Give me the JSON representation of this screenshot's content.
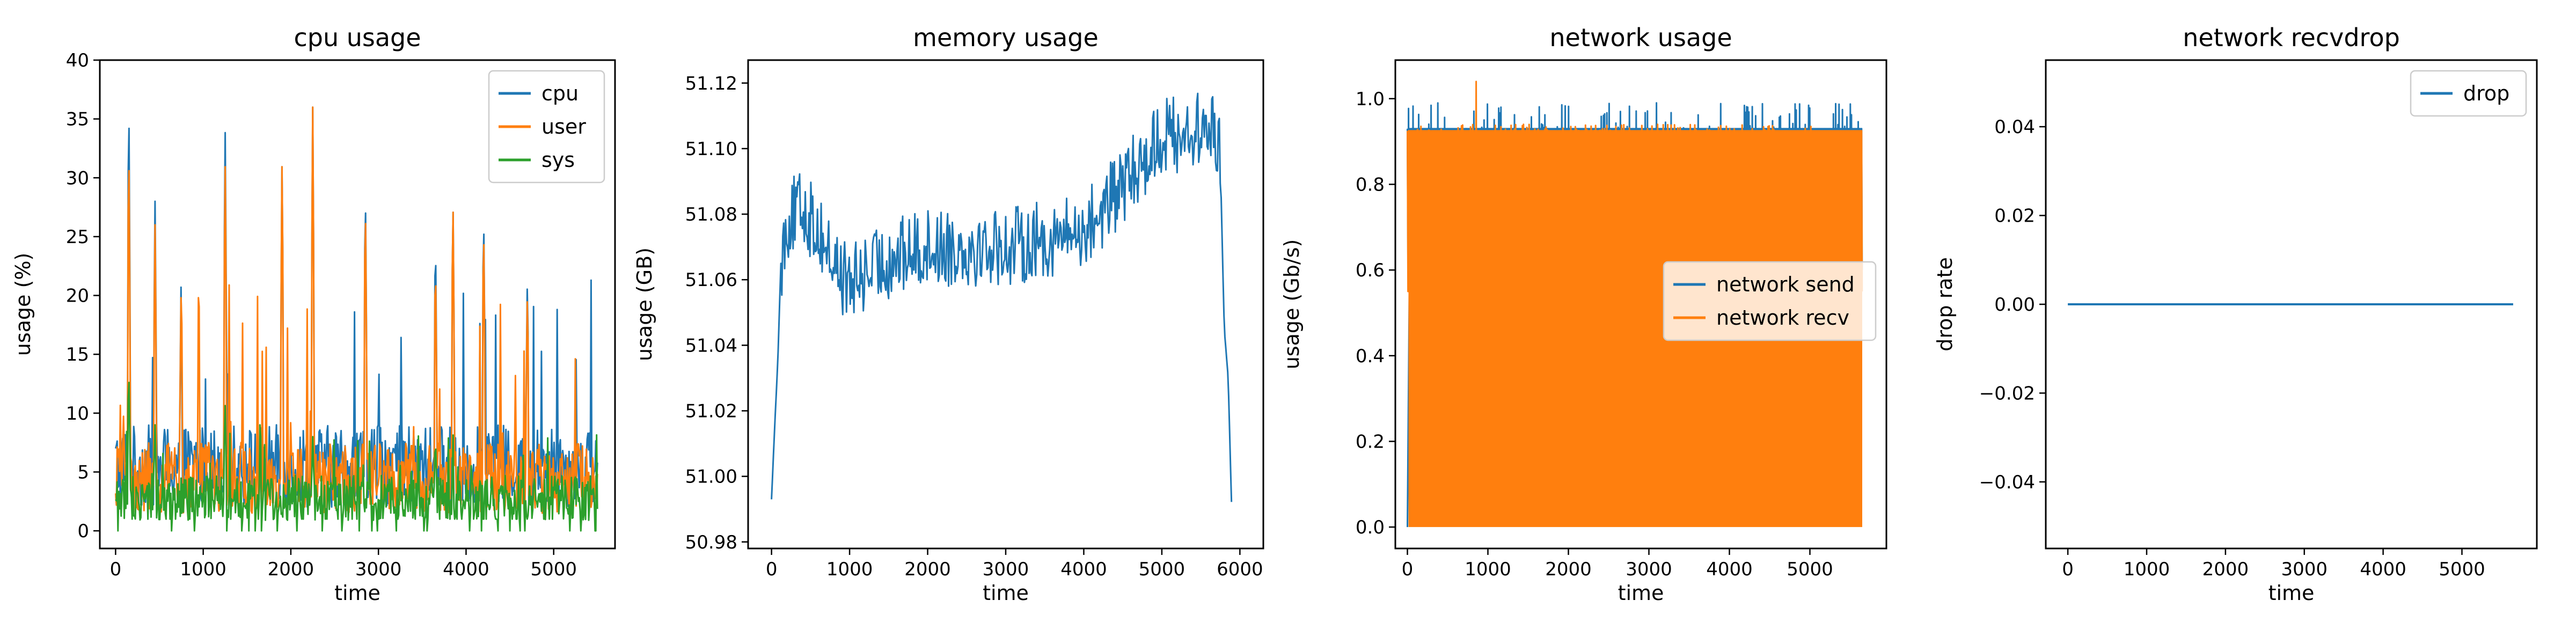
{
  "chart_data": [
    {
      "type": "line",
      "title": "cpu usage",
      "xlabel": "time",
      "ylabel": "usage (%)",
      "xlim": [
        -180,
        5700
      ],
      "ylim": [
        -1.5,
        40
      ],
      "xticks": [
        0,
        1000,
        2000,
        3000,
        4000,
        5000
      ],
      "yticks": [
        0,
        5,
        10,
        15,
        20,
        25,
        30,
        35,
        40
      ],
      "legend": "top-right",
      "x_extent": [
        0,
        5500
      ],
      "series": [
        {
          "name": "cpu",
          "color": "#1f77b4",
          "baseline": 5.5,
          "noise": 3.5,
          "peaks": [
            [
              150,
              38
            ],
            [
              450,
              28
            ],
            [
              750,
              23
            ],
            [
              1250,
              35
            ],
            [
              1900,
              32
            ],
            [
              2250,
              36
            ],
            [
              2850,
              30
            ],
            [
              3650,
              26
            ],
            [
              3850,
              29
            ],
            [
              4200,
              28
            ],
            [
              4700,
              22
            ],
            [
              5500,
              6
            ]
          ]
        },
        {
          "name": "user",
          "color": "#ff7f0e",
          "baseline": 4.5,
          "noise": 3.0,
          "peaks": [
            [
              150,
              34
            ],
            [
              450,
              26
            ],
            [
              750,
              22
            ],
            [
              1250,
              32
            ],
            [
              1900,
              32
            ],
            [
              2250,
              36
            ],
            [
              2850,
              29
            ],
            [
              3650,
              24
            ],
            [
              3850,
              29
            ],
            [
              4200,
              27
            ],
            [
              4700,
              21
            ],
            [
              5500,
              5
            ]
          ]
        },
        {
          "name": "sys",
          "color": "#2ca02c",
          "baseline": 2.5,
          "noise": 2.2,
          "peaks": [
            [
              150,
              14
            ],
            [
              450,
              9
            ],
            [
              1250,
              11
            ],
            [
              1650,
              10
            ],
            [
              2250,
              8
            ],
            [
              3650,
              8
            ]
          ]
        }
      ]
    },
    {
      "type": "line",
      "title": "memory usage",
      "xlabel": "time",
      "ylabel": "usage (GB)",
      "xlim": [
        -300,
        6300
      ],
      "ylim": [
        50.978,
        51.127
      ],
      "xticks": [
        0,
        1000,
        2000,
        3000,
        4000,
        5000,
        6000
      ],
      "yticks": [
        50.98,
        51.0,
        51.02,
        51.04,
        51.06,
        51.08,
        51.1,
        51.12
      ],
      "series": [
        {
          "name": "memory",
          "color": "#1f77b4",
          "points": [
            [
              0,
              50.993
            ],
            [
              40,
              51.015
            ],
            [
              80,
              51.035
            ],
            [
              120,
              51.065
            ],
            [
              200,
              51.078
            ],
            [
              400,
              51.082
            ],
            [
              600,
              51.075
            ],
            [
              800,
              51.065
            ],
            [
              1000,
              51.058
            ],
            [
              1200,
              51.062
            ],
            [
              1500,
              51.066
            ],
            [
              2000,
              51.07
            ],
            [
              2500,
              51.07
            ],
            [
              3000,
              51.07
            ],
            [
              3500,
              51.072
            ],
            [
              4000,
              51.075
            ],
            [
              4500,
              51.088
            ],
            [
              5000,
              51.104
            ],
            [
              5400,
              51.105
            ],
            [
              5700,
              51.105
            ],
            [
              5750,
              51.095
            ],
            [
              5800,
              51.045
            ],
            [
              5850,
              51.03
            ],
            [
              5900,
              50.985
            ]
          ],
          "wiggle": 0.012
        }
      ]
    },
    {
      "type": "line",
      "title": "network usage",
      "xlabel": "time",
      "ylabel": "usage (Gb/s)",
      "xlim": [
        -150,
        5950
      ],
      "ylim": [
        -0.05,
        1.09
      ],
      "xticks": [
        0,
        1000,
        2000,
        3000,
        4000,
        5000
      ],
      "yticks": [
        0.0,
        0.2,
        0.4,
        0.6,
        0.8,
        1.0
      ],
      "legend": "center-right",
      "x_extent": [
        0,
        5650
      ],
      "series": [
        {
          "name": "network send",
          "color": "#1f77b4",
          "top": 0.93,
          "spike_top": 0.97,
          "low": 0.0
        },
        {
          "name": "network recv",
          "color": "#ff7f0e",
          "top": 0.925,
          "spike_top": 0.94,
          "low": 0.0,
          "peak": [
            850,
            1.04
          ]
        }
      ]
    },
    {
      "type": "line",
      "title": "network recvdrop",
      "xlabel": "time",
      "ylabel": "drop rate",
      "xlim": [
        -280,
        5950
      ],
      "ylim": [
        -0.055,
        0.055
      ],
      "xticks": [
        0,
        1000,
        2000,
        3000,
        4000,
        5000
      ],
      "yticks": [
        -0.04,
        -0.02,
        0.0,
        0.02,
        0.04
      ],
      "legend": "top-right",
      "series": [
        {
          "name": "drop",
          "color": "#1f77b4",
          "points": [
            [
              0,
              0
            ],
            [
              5650,
              0
            ]
          ]
        }
      ]
    }
  ]
}
